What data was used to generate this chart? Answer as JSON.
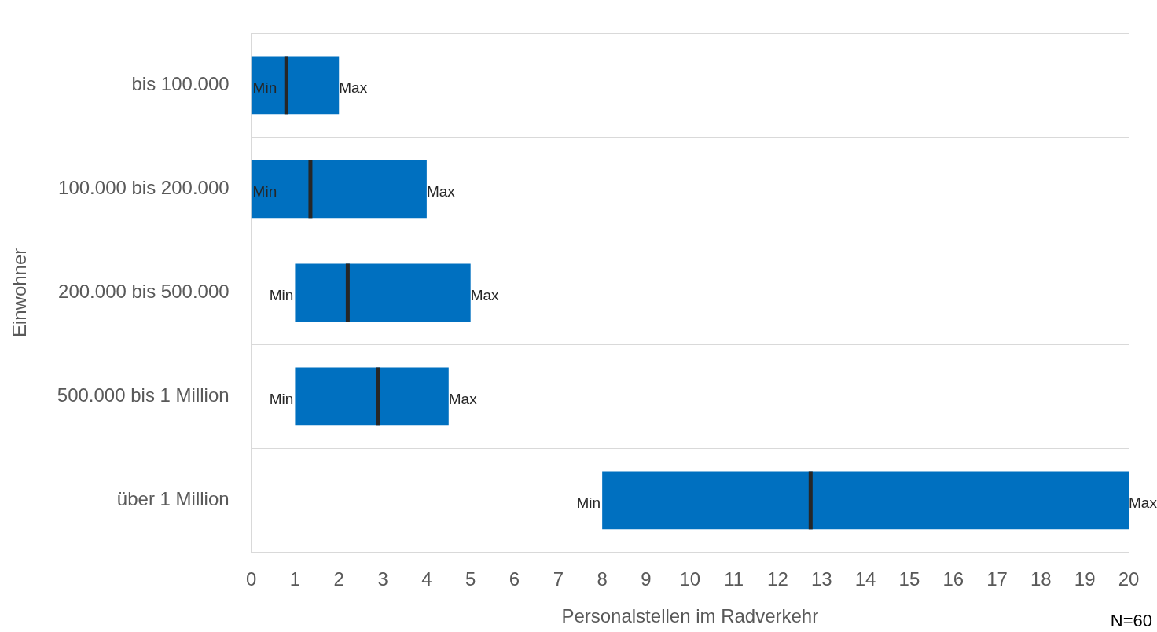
{
  "chart_data": {
    "type": "box",
    "orientation": "horizontal",
    "xlabel": "Personalstellen im Radverkehr",
    "ylabel": "Einwohner",
    "categories": [
      "bis 100.000",
      "100.000 bis 200.000",
      "200.000 bis 500.000",
      "500.000 bis 1 Million",
      "über 1 Million"
    ],
    "series": [
      {
        "color": "#0070c0",
        "boxes": [
          {
            "low": 0,
            "q1": 0,
            "median": 0.8,
            "q3": 2,
            "high": 2
          },
          {
            "low": 0,
            "q1": 0,
            "median": 1.35,
            "q3": 4,
            "high": 4
          },
          {
            "low": 1,
            "q1": 1,
            "median": 2.2,
            "q3": 5,
            "high": 5
          },
          {
            "low": 1,
            "q1": 1,
            "median": 2.9,
            "q3": 4.5,
            "high": 4.5
          },
          {
            "low": 8,
            "q1": 8,
            "median": 12.75,
            "q3": 20,
            "high": 20
          }
        ]
      }
    ],
    "xlim": [
      0,
      20
    ],
    "xticks": [
      0,
      1,
      2,
      3,
      4,
      5,
      6,
      7,
      8,
      9,
      10,
      11,
      12,
      13,
      14,
      15,
      16,
      17,
      18,
      19,
      20
    ],
    "grid": "y",
    "annotations": [
      {
        "text": "Min",
        "x": 0,
        "y": "bis 100.000"
      },
      {
        "text": "Max",
        "x": 2,
        "y": "bis 100.000"
      },
      {
        "text": "Min",
        "x": 0,
        "y": "100.000 bis 200.000"
      },
      {
        "text": "Max",
        "x": 4,
        "y": "100.000 bis 200.000"
      },
      {
        "text": "Min",
        "x": 1,
        "y": "200.000 bis 500.000"
      },
      {
        "text": "Max",
        "x": 5,
        "y": "200.000 bis 500.000"
      },
      {
        "text": "Min",
        "x": 1,
        "y": "500.000 bis 1 Million"
      },
      {
        "text": "Max",
        "x": 4.5,
        "y": "500.000 bis 1 Million"
      },
      {
        "text": "Min",
        "x": 8,
        "y": "über 1 Million"
      },
      {
        "text": "Max",
        "x": 20,
        "y": "über 1 Million"
      },
      "N=60"
    ]
  }
}
